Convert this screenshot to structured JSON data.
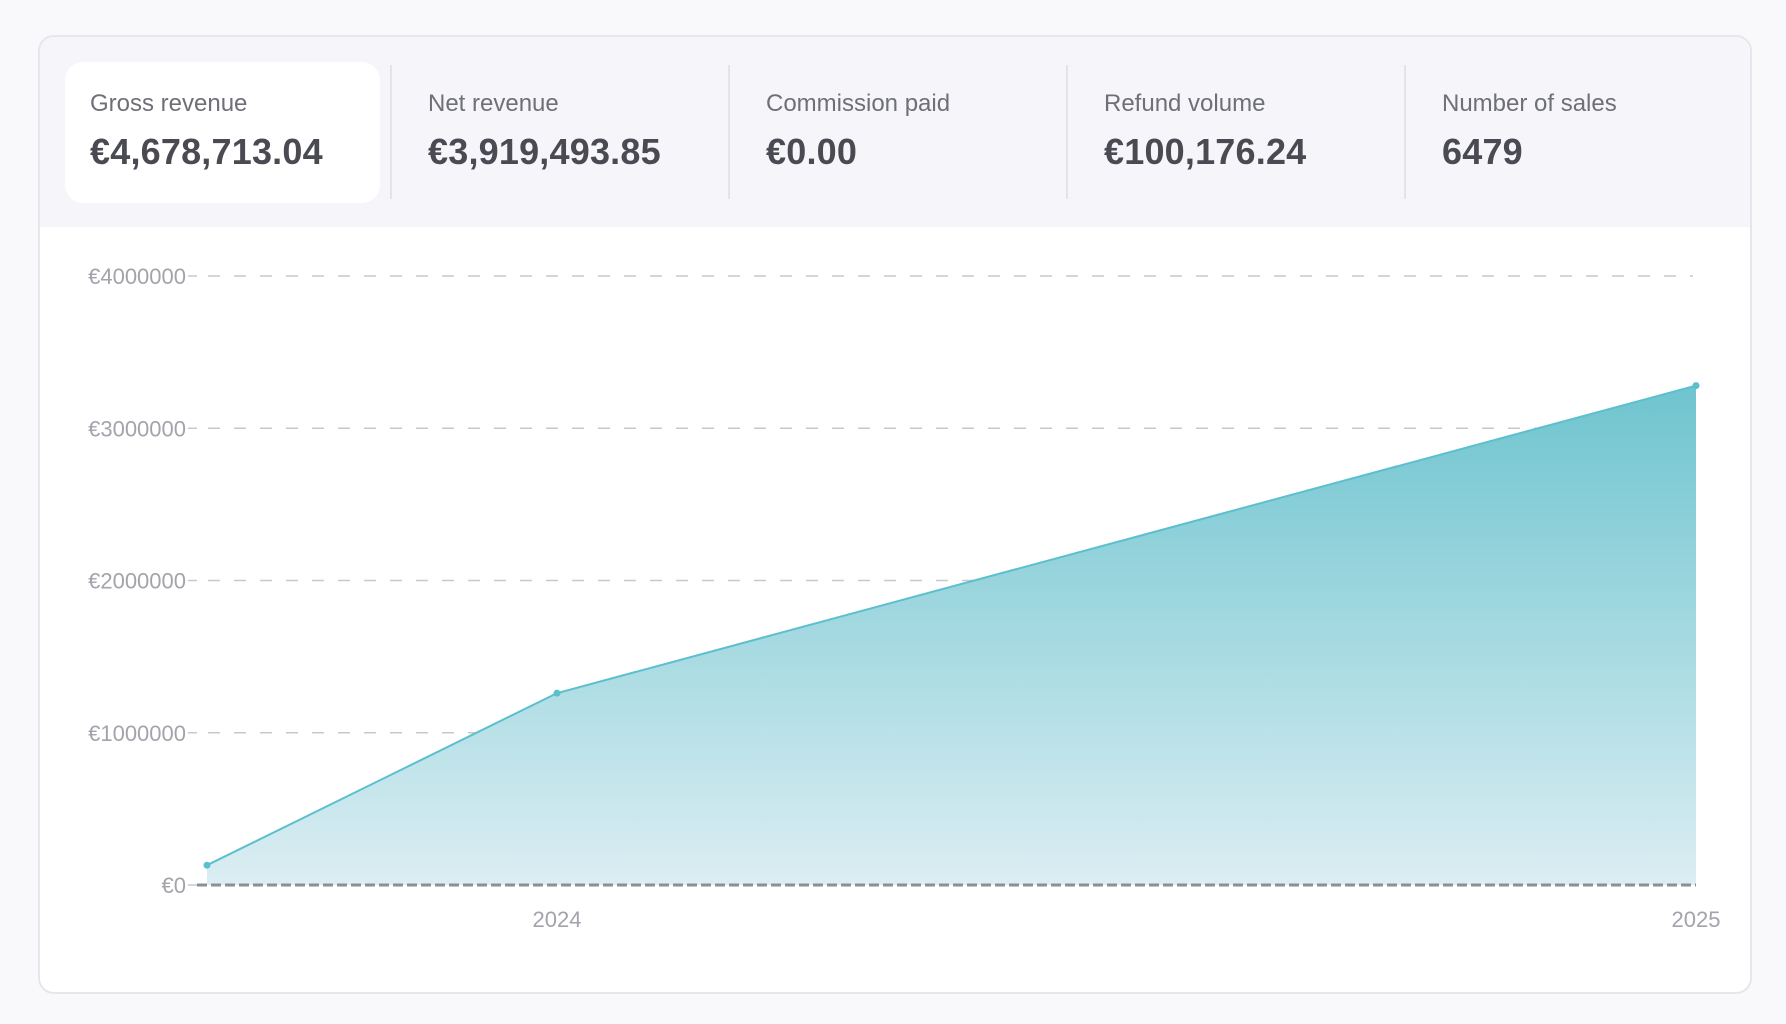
{
  "stats": [
    {
      "label": "Gross revenue",
      "value": "€4,678,713.04"
    },
    {
      "label": "Net revenue",
      "value": "€3,919,493.85"
    },
    {
      "label": "Commission paid",
      "value": "€0.00"
    },
    {
      "label": "Refund volume",
      "value": "€100,176.24"
    },
    {
      "label": "Number of sales",
      "value": "6479"
    }
  ],
  "selected_stat": 0,
  "colors": {
    "line": "#5bbfce",
    "area_top": "#6ec4cf",
    "area_bottom": "#dbeef3",
    "grid": "#c8c8cc",
    "baseline": "#8a9096"
  },
  "chart_data": {
    "type": "area",
    "title": "",
    "xlabel": "",
    "ylabel": "",
    "x_ticks": [
      "2024",
      "2025"
    ],
    "y_ticks": [
      "€0",
      "€1000000",
      "€2000000",
      "€3000000",
      "€4000000"
    ],
    "ylim": [
      0,
      4000000
    ],
    "grid": true,
    "series": [
      {
        "points": [
          {
            "x": "start",
            "y": 130000
          },
          {
            "x": "2024",
            "y": 1260000
          },
          {
            "x": "2025",
            "y": 3280000
          }
        ]
      }
    ]
  }
}
